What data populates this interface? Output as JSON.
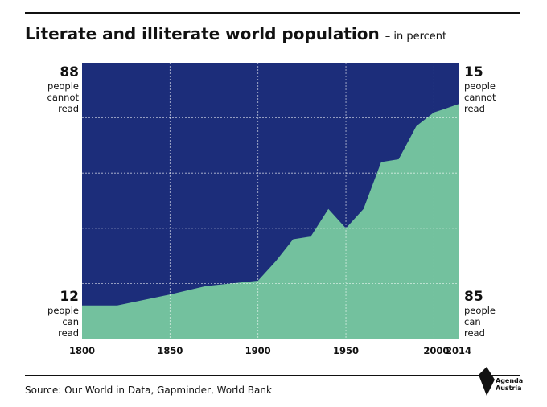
{
  "title": "Literate and illiterate world population",
  "subtitle": "– in percent",
  "left_top": {
    "value": "88",
    "l1": "people",
    "l2": "cannot",
    "l3": "read"
  },
  "left_bottom": {
    "value": "12",
    "l1": "people",
    "l2": "can",
    "l3": "read"
  },
  "right_top": {
    "value": "15",
    "l1": "people",
    "l2": "cannot",
    "l3": "read"
  },
  "right_bottom": {
    "value": "85",
    "l1": "people",
    "l2": "can",
    "l3": "read"
  },
  "source": "Source: Our World in Data, Gapminder, World Bank",
  "logo": {
    "line1": "Agenda",
    "line2": "Austria"
  },
  "colors": {
    "illiterate": "#1c2d7a",
    "literate": "#73c19e",
    "grid": "#ffffff"
  },
  "chart_data": {
    "type": "area",
    "x_tick_labels": [
      "1800",
      "1850",
      "1900",
      "1950",
      "2000",
      "2014"
    ],
    "xlim": [
      1800,
      2014
    ],
    "ylim": [
      0,
      100
    ],
    "grid": true,
    "series": [
      {
        "name": "people can read",
        "x": [
          1800,
          1820,
          1850,
          1870,
          1900,
          1910,
          1920,
          1930,
          1940,
          1950,
          1960,
          1970,
          1980,
          1990,
          2000,
          2005,
          2014
        ],
        "values": [
          12,
          12,
          16,
          19,
          21,
          28,
          36,
          37,
          47,
          40,
          47,
          64,
          65,
          77,
          82,
          83,
          85
        ]
      },
      {
        "name": "people cannot read",
        "x": [
          1800,
          1820,
          1850,
          1870,
          1900,
          1910,
          1920,
          1930,
          1940,
          1950,
          1960,
          1970,
          1980,
          1990,
          2000,
          2005,
          2014
        ],
        "values": [
          88,
          88,
          84,
          81,
          79,
          72,
          64,
          63,
          53,
          60,
          53,
          36,
          35,
          23,
          18,
          17,
          15
        ]
      }
    ]
  }
}
